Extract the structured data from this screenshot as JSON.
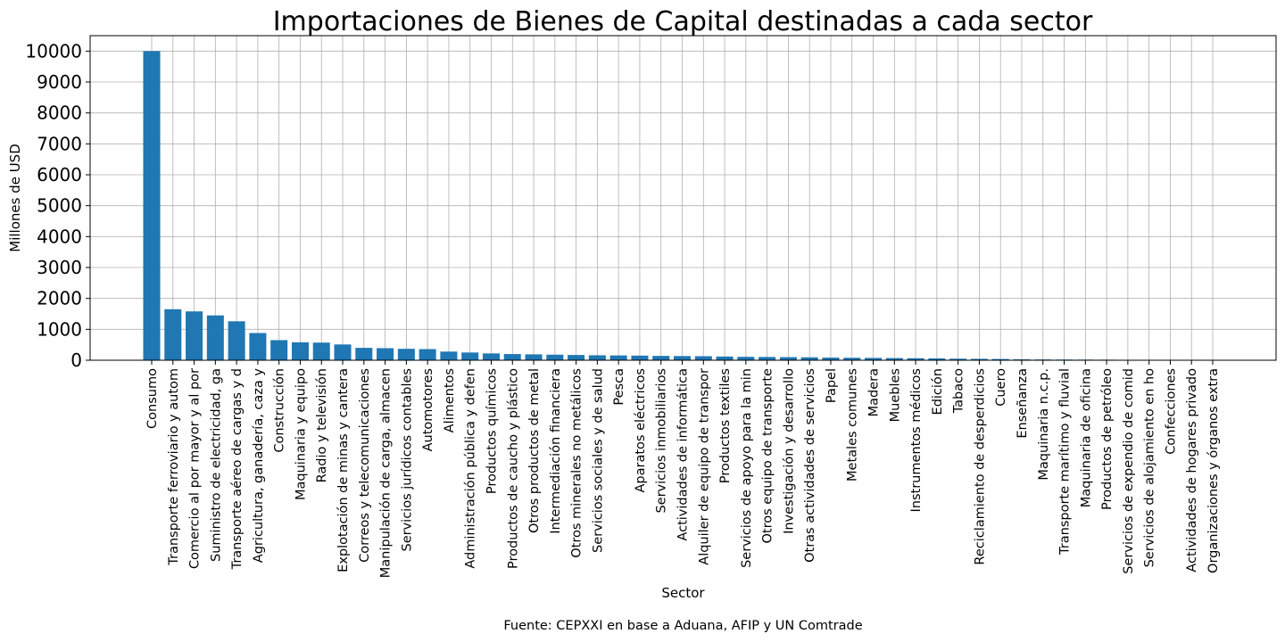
{
  "chart_data": {
    "type": "bar",
    "title": "Importaciones de Bienes de Capital destinadas a cada sector",
    "xlabel": "Sector",
    "ylabel": "Millones de USD",
    "source": "Fuente: CEPXXI en base a Aduana, AFIP y UN Comtrade",
    "ylim": [
      0,
      10500
    ],
    "yticks": [
      0,
      1000,
      2000,
      3000,
      4000,
      5000,
      6000,
      7000,
      8000,
      9000,
      10000
    ],
    "grid": true,
    "bar_color": "#1f77b4",
    "categories": [
      "Consumo",
      "Transporte ferroviario y autom",
      "Comercio al por mayor y al por",
      "Suministro de electricidad, ga",
      "Transporte aéreo de cargas y d",
      "Agricultura, ganadería, caza y",
      "Construcción",
      "Maquinaria y equipo",
      "Radio y televisión",
      "Explotación de minas y cantera",
      "Correos y telecomunicaciones",
      "Manipulación de carga, almacen",
      "Servicios jurídicos contables",
      "Automotores",
      "Alimentos",
      "Administración pública y defen",
      "Productos químicos",
      "Productos de caucho y plástico",
      "Otros productos de metal",
      "Intermediación financiera",
      "Otros minerales no metálicos",
      "Servicios sociales y de salud",
      "Pesca",
      "Aparatos eléctricos",
      "Servicios inmobiliarios",
      "Actividades de informática",
      "Alquiler de equipo de transpor",
      "Productos textiles",
      "Servicios de apoyo para la min",
      "Otros equipo de transporte",
      "Investigación y desarrollo",
      "Otras actividades de servicios",
      "Papel",
      "Metales comunes",
      "Madera",
      "Muebles",
      "Instrumentos médicos",
      "Edición",
      "Tabaco",
      "Reciclamiento de desperdicios",
      "Cuero",
      "Enseñanza",
      "Maquinaria n.c.p.",
      "Transporte marítimo y fluvial",
      "Maquinaria de oficina",
      "Productos de petróleo",
      "Servicios de expendio de comid",
      "Servicios de alojamiento en ho",
      "Confecciones",
      "Actividades de hogares privado",
      "Organizaciones y órganos extra"
    ],
    "values": [
      10000,
      1650,
      1580,
      1450,
      1260,
      880,
      650,
      580,
      570,
      510,
      400,
      390,
      370,
      360,
      280,
      250,
      220,
      200,
      190,
      180,
      170,
      160,
      155,
      150,
      140,
      135,
      130,
      120,
      110,
      105,
      100,
      95,
      85,
      80,
      75,
      70,
      65,
      60,
      50,
      45,
      40,
      30,
      25,
      22,
      20,
      18,
      15,
      12,
      10,
      8,
      6
    ]
  }
}
